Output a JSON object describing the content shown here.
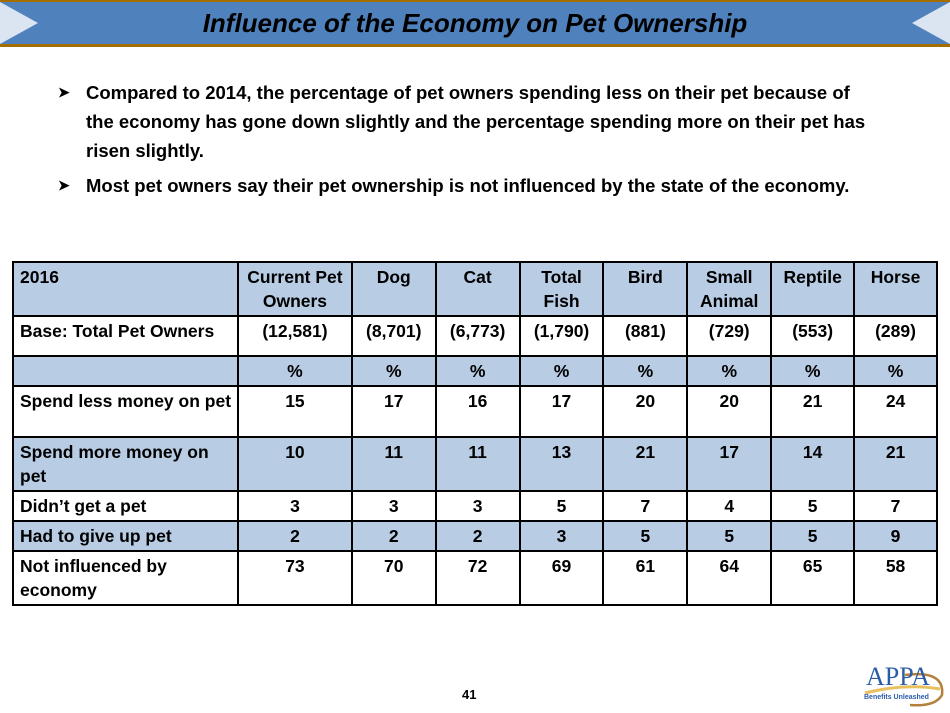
{
  "title": "Influence of the Economy on Pet Ownership",
  "bullets": [
    "Compared to 2014, the percentage of pet owners spending less on their pet because of the economy has gone down slightly and the percentage spending more on their pet has risen slightly.",
    "Most pet owners say their pet ownership is not influenced by the state of the economy."
  ],
  "table": {
    "headers": [
      "2016",
      "Current Pet Owners",
      "Dog",
      "Cat",
      "Total Fish",
      "Bird",
      "Small Animal",
      "Reptile",
      "Horse"
    ],
    "rows": [
      {
        "label": "Base: Total Pet Owners",
        "values": [
          "(12,581)",
          "(8,701)",
          "(6,773)",
          "(1,790)",
          "(881)",
          "(729)",
          "(553)",
          "(289)"
        ]
      },
      {
        "label": "",
        "values": [
          "%",
          "%",
          "%",
          "%",
          "%",
          "%",
          "%",
          "%"
        ]
      },
      {
        "label": "Spend less money on pet",
        "values": [
          "15",
          "17",
          "16",
          "17",
          "20",
          "20",
          "21",
          "24"
        ]
      },
      {
        "label": "Spend more money on pet",
        "values": [
          "10",
          "11",
          "11",
          "13",
          "21",
          "17",
          "14",
          "21"
        ]
      },
      {
        "label": "Didn’t get a pet",
        "values": [
          "3",
          "3",
          "3",
          "5",
          "7",
          "4",
          "5",
          "7"
        ]
      },
      {
        "label": "Had to give up pet",
        "values": [
          "2",
          "2",
          "2",
          "3",
          "5",
          "5",
          "5",
          "9"
        ]
      },
      {
        "label": "Not influenced by economy",
        "values": [
          "73",
          "70",
          "72",
          "69",
          "61",
          "64",
          "65",
          "58"
        ]
      }
    ]
  },
  "page_number": "41",
  "logo": {
    "text": "APPA",
    "tagline": "Benefits Unleashed"
  },
  "colors": {
    "banner": "#4f81bd",
    "banner_border": "#a56c00",
    "table_shade": "#b8cce4"
  }
}
